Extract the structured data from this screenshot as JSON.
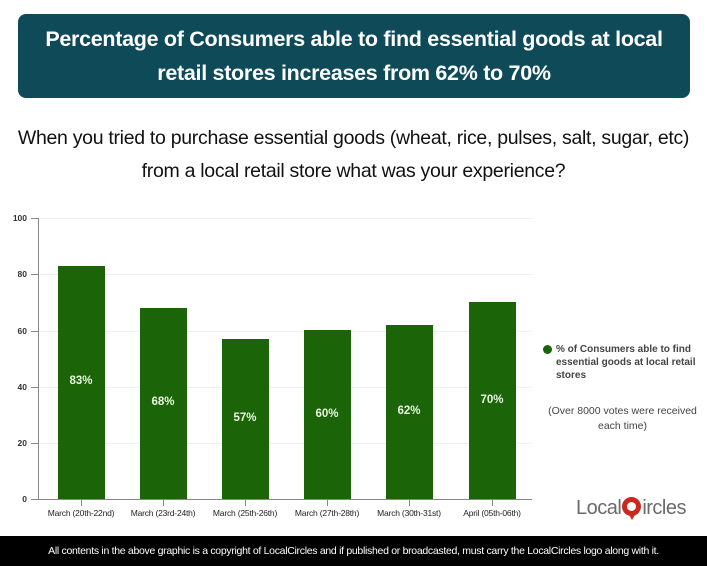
{
  "header": {
    "title": "Percentage of Consumers able to find essential goods at local retail stores increases from 62% to 70%",
    "question": "When you tried to purchase essential goods (wheat, rice, pulses, salt, sugar, etc) from a local retail store what was your experience?"
  },
  "legend": {
    "label": "% of Consumers able to find essential goods at local retail stores",
    "color": "#1b6508",
    "note": "(Over 8000 votes were received each time)"
  },
  "logo": {
    "left": "Local",
    "right": "ircles"
  },
  "footer": {
    "text": "All contents in the above graphic is a copyright of LocalCircles and if published or broadcasted, must carry the LocalCircles logo along with it."
  },
  "colors": {
    "title_bg": "#0e4a57",
    "bar": "#1b6508",
    "footer_bg": "#000000"
  },
  "chart_data": {
    "type": "bar",
    "title": "Percentage of Consumers able to find essential goods at local retail stores increases from 62% to 70%",
    "subtitle": "When you tried to purchase essential goods (wheat, rice, pulses, salt, sugar, etc) from a local retail store what was your experience?",
    "categories": [
      "March (20th-22nd)",
      "March (23rd-24th)",
      "March (25th-26th)",
      "March (27th-28th)",
      "March (30th-31st)",
      "April (05th-06th)"
    ],
    "series": [
      {
        "name": "% of Consumers able to find essential goods at local retail stores",
        "values": [
          83,
          68,
          57,
          60,
          62,
          70
        ]
      }
    ],
    "data_labels": [
      "83%",
      "68%",
      "57%",
      "60%",
      "62%",
      "70%"
    ],
    "xlabel": "",
    "ylabel": "",
    "ylim": [
      0,
      100
    ],
    "yticks": [
      0,
      20,
      40,
      60,
      80,
      100
    ],
    "grid": true,
    "legend_position": "right",
    "annotations": [
      "(Over 8000 votes were received each time)"
    ]
  }
}
